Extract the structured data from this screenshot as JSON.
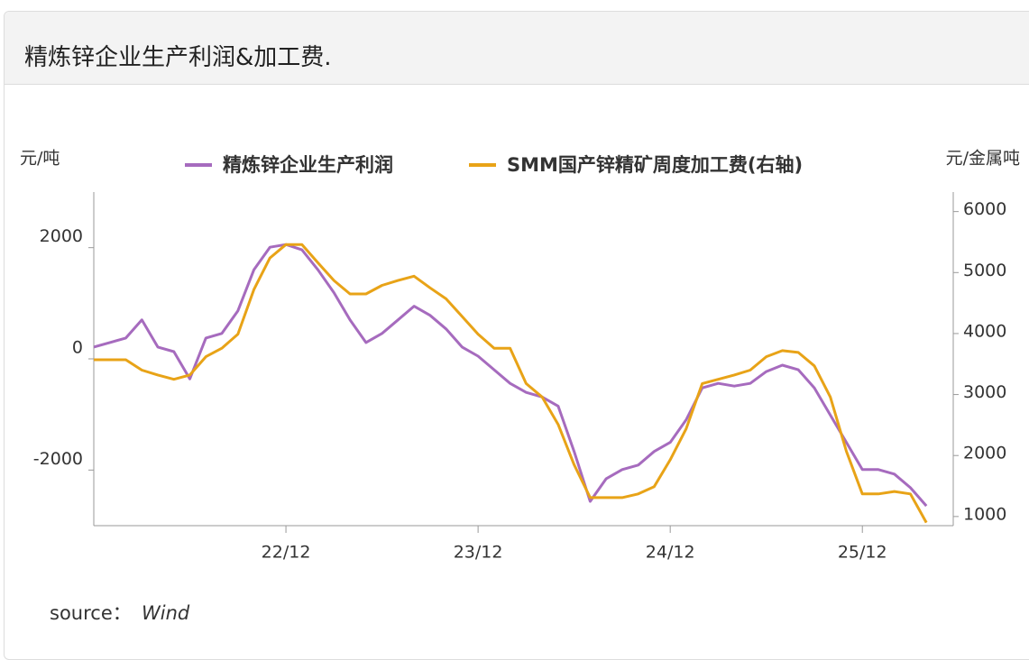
{
  "chart_data": {
    "type": "line",
    "title": "精炼锌企业生产利润&加工费.",
    "ylabel": "元/吨",
    "y2label": "元/金属吨",
    "source_label": "source：",
    "source": "Wind",
    "x": [
      "21/12",
      "22/01",
      "22/02",
      "22/03",
      "22/04",
      "22/05",
      "22/06",
      "22/07",
      "22/08",
      "22/09",
      "22/10",
      "22/11",
      "22/12",
      "23/01",
      "23/02",
      "23/03",
      "23/04",
      "23/05",
      "23/06",
      "23/07",
      "23/08",
      "23/09",
      "23/10",
      "23/11",
      "23/12",
      "24/01",
      "24/02",
      "24/03",
      "24/04",
      "24/05",
      "24/06",
      "24/07",
      "24/08",
      "24/09",
      "24/10",
      "24/11",
      "24/12",
      "25/01",
      "25/02",
      "25/03",
      "25/04",
      "25/05",
      "25/06",
      "25/07",
      "25/08",
      "25/09",
      "25/10",
      "25/11",
      "25/12",
      "26/01",
      "26/02",
      "26/03",
      "26/04"
    ],
    "xticks": [
      "22/12",
      "23/12",
      "24/12",
      "25/12"
    ],
    "series": [
      {
        "name": "精炼锌企业生产利润",
        "color": "#a66bbe",
        "values": [
          212,
          294,
          375,
          700,
          212,
          130,
          -360,
          375,
          457,
          865,
          1600,
          2008,
          2057,
          1960,
          1600,
          1190,
          700,
          294,
          457,
          700,
          947,
          784,
          539,
          212,
          49,
          -196,
          -441,
          -604,
          -686,
          -849,
          -1665,
          -2563,
          -2155,
          -1992,
          -1910,
          -1665,
          -1502,
          -1094,
          -522,
          -441,
          -490,
          -441,
          -229,
          -114,
          -196,
          -522,
          -1012,
          -1502,
          -1992,
          -1992,
          -2073,
          -2318,
          -2645
        ]
      },
      {
        "name": "SMM国产锌精矿周度加工费(右轴)",
        "color": "#e8a317",
        "axis": "y2",
        "values": [
          3570,
          3570,
          3570,
          3400,
          3320,
          3250,
          3320,
          3620,
          3760,
          3990,
          4720,
          5240,
          5460,
          5460,
          5160,
          4870,
          4650,
          4650,
          4790,
          4870,
          4940,
          4750,
          4570,
          4280,
          3990,
          3760,
          3760,
          3180,
          2960,
          2510,
          1850,
          1310,
          1310,
          1310,
          1370,
          1490,
          1930,
          2440,
          3180,
          3250,
          3320,
          3400,
          3620,
          3720,
          3690,
          3470,
          2960,
          2070,
          1370,
          1370,
          1410,
          1370,
          900
        ]
      }
    ],
    "ylim": [
      -3000,
      3000
    ],
    "yticks": [
      -2000,
      0,
      2000
    ],
    "y2lim": [
      850,
      6320
    ],
    "y2ticks": [
      1000,
      2000,
      3000,
      4000,
      5000,
      6000
    ]
  }
}
